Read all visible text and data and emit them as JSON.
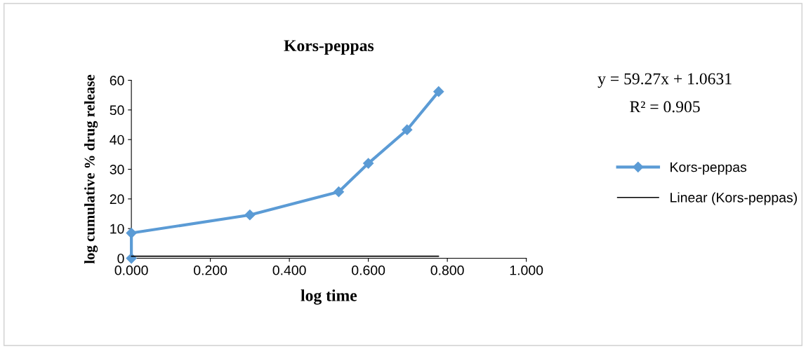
{
  "chart_data": {
    "type": "line",
    "title": "Kors-peppas",
    "xlabel": "log time",
    "ylabel": "log cumulative % drug release",
    "series": [
      {
        "name": "Kors-peppas",
        "color": "#5b9bd5",
        "x": [
          0,
          0,
          0.3,
          0.525,
          0.6,
          0.698,
          0.778
        ],
        "values": [
          0,
          8.5,
          14.6,
          22.4,
          32,
          43.3,
          56.2
        ],
        "marker": "diamond"
      },
      {
        "name": "Linear (Kors-peppas)",
        "color": "#000000",
        "x": [
          0,
          0.778
        ],
        "values": [
          0.7,
          0.7
        ],
        "marker": "none"
      }
    ],
    "annotations": [
      "y = 59.27x + 1.0631",
      "R² = 0.905"
    ],
    "xlim": [
      0,
      1
    ],
    "xticks": [
      {
        "value": 0,
        "label": "0.000"
      },
      {
        "value": 0.2,
        "label": "0.200"
      },
      {
        "value": 0.4,
        "label": "0.400"
      },
      {
        "value": 0.6,
        "label": "0.600"
      },
      {
        "value": 0.8,
        "label": "0.800"
      },
      {
        "value": 1,
        "label": "1.000"
      }
    ],
    "ylim": [
      0,
      60
    ],
    "yticks": [
      0,
      10,
      20,
      30,
      40,
      50,
      60
    ],
    "grid": false,
    "legend": "right"
  }
}
